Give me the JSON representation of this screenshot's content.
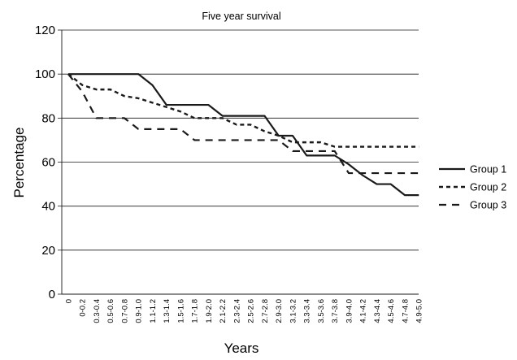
{
  "chart_data": {
    "type": "line",
    "title": "Five year survival",
    "xlabel": "Years",
    "ylabel": "Percentage",
    "ylim": [
      0,
      120
    ],
    "yticks": [
      0,
      20,
      40,
      60,
      80,
      100,
      120
    ],
    "grid": "horizontal",
    "legend_position": "right",
    "categories": [
      "0",
      "0-0.2",
      "0.3-0.4",
      "0.5-0.6",
      "0.7-0.8",
      "0.9-1.0",
      "1.1-1.2",
      "1.3-1.4",
      "1.5-1.6",
      "1.7-1.8",
      "1.9-2.0",
      "2.1-2.2",
      "2.3-2.4",
      "2.5-2.6",
      "2.7-2.8",
      "2.9-3.0",
      "3.1-3.2",
      "3.3-3.4",
      "3.5-3.6",
      "3.7-3.8",
      "3.9-4.0",
      "4.1-4.2",
      "4.3-4.4",
      "4.5-4.6",
      "4.7-4.8",
      "4.9-5.0"
    ],
    "series": [
      {
        "name": "Group 1",
        "line_style": "solid",
        "values": [
          100,
          100,
          100,
          100,
          100,
          100,
          95,
          86,
          86,
          86,
          86,
          81,
          81,
          81,
          81,
          72,
          72,
          63,
          63,
          63,
          59,
          54,
          50,
          50,
          45,
          45
        ]
      },
      {
        "name": "Group 2",
        "line_style": "short-dash",
        "values": [
          100,
          95,
          93,
          93,
          90,
          89,
          87,
          85,
          83,
          80,
          80,
          80,
          77,
          77,
          74,
          72,
          69,
          69,
          69,
          67,
          67,
          67,
          67,
          67,
          67,
          67
        ]
      },
      {
        "name": "Group 3",
        "line_style": "long-dash",
        "values": [
          100,
          92,
          80,
          80,
          80,
          75,
          75,
          75,
          75,
          70,
          70,
          70,
          70,
          70,
          70,
          70,
          65,
          65,
          65,
          65,
          55,
          55,
          55,
          55,
          55,
          55
        ]
      }
    ]
  }
}
